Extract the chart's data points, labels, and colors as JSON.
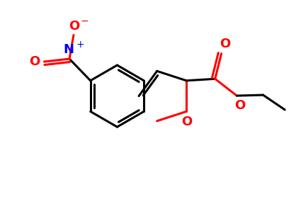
{
  "background_color": "#ffffff",
  "bond_color": "#000000",
  "oxygen_color": "#ff0000",
  "nitrogen_color": "#0000ff",
  "line_width": 2.2,
  "figsize": [
    4.18,
    2.78
  ],
  "dpi": 100,
  "xlim": [
    0,
    8.36
  ],
  "ylim": [
    0,
    5.56
  ]
}
